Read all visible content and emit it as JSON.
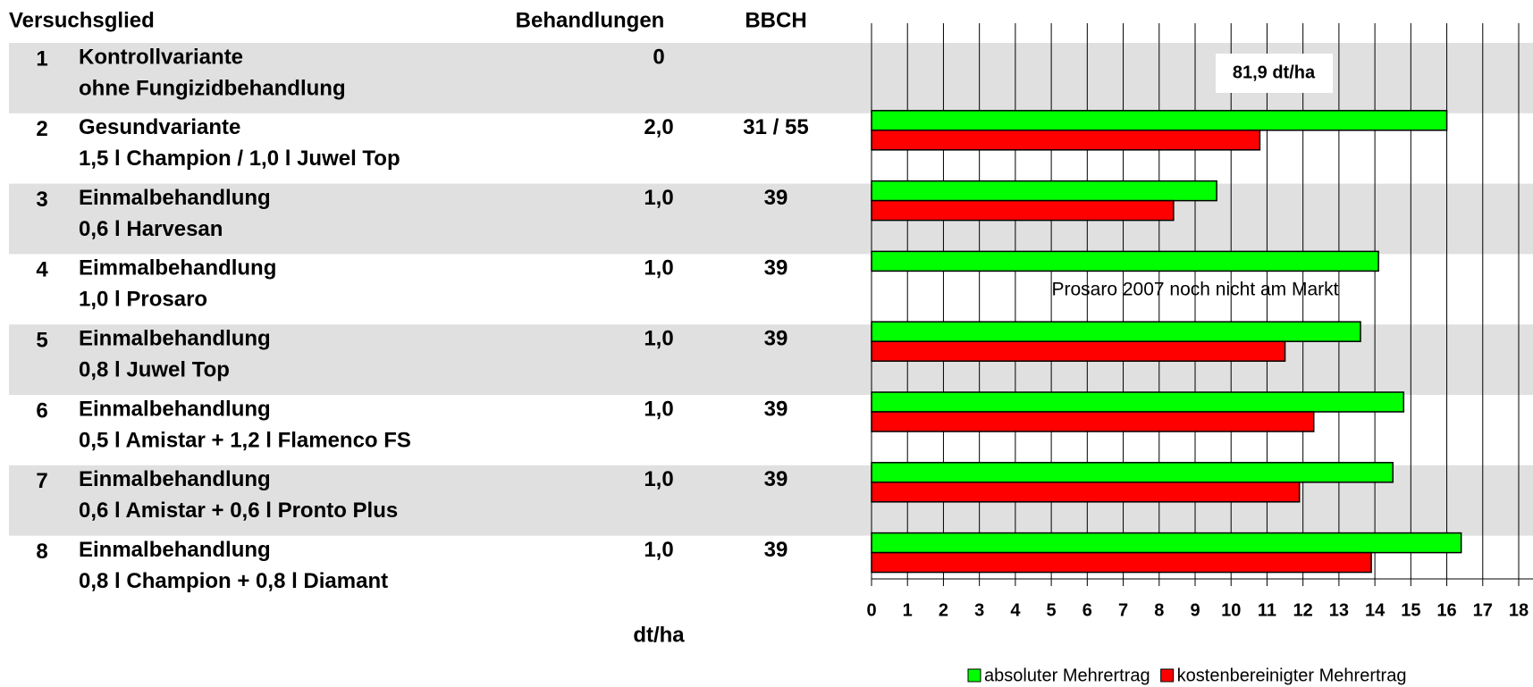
{
  "table": {
    "headers": [
      "Versuchsglied",
      "Behandlungen",
      "BBCH"
    ],
    "rows": [
      {
        "name": "Kontrollvariante",
        "product": "ohne Fungizidbehandlung",
        "treatments": "0",
        "bbch": null
      },
      {
        "name": "Gesundvariante",
        "product": "1,5 l Champion / 1,0 l Juwel Top",
        "treatments": "2,0",
        "bbch": "31 / 55"
      },
      {
        "name": "Einmalbehandlung",
        "product": "0,6 l Harvesan",
        "treatments": "1,0",
        "bbch": "39"
      },
      {
        "name": "Eimmalbehandlung",
        "product": "1,0 l Prosaro",
        "treatments": "1,0",
        "bbch": "39"
      },
      {
        "name": "Einmalbehandlung",
        "product": "0,8 l Juwel Top",
        "treatments": "1,0",
        "bbch": "39"
      },
      {
        "name": "Einmalbehandlung",
        "product": "0,5 l Amistar + 1,2 l Flamenco FS",
        "treatments": "1,0",
        "bbch": "39"
      },
      {
        "name": "Einmalbehandlung",
        "product": "0,6 l Amistar + 0,6 l Pronto Plus",
        "treatments": "1,0",
        "bbch": "39"
      },
      {
        "name": "Einmalbehandlung",
        "product": "0,8 l Champion + 0,8 l Diamant",
        "treatments": "1,0",
        "bbch": "39"
      }
    ]
  },
  "chart_data": {
    "type": "bar",
    "orientation": "horizontal",
    "categories": [
      "1",
      "2",
      "3",
      "4",
      "5",
      "6",
      "7",
      "8"
    ],
    "x_label": "dt/ha",
    "xlim": [
      0,
      18
    ],
    "xticks": [
      0,
      1,
      2,
      3,
      4,
      5,
      6,
      7,
      8,
      9,
      10,
      11,
      12,
      13,
      14,
      15,
      16,
      17,
      18
    ],
    "grid": true,
    "legend": "bottom-right",
    "series": [
      {
        "name": "absoluter Mehrertrag",
        "color": "#00ff00",
        "values": [
          null,
          16.0,
          9.6,
          14.1,
          13.6,
          14.8,
          14.5,
          16.4
        ]
      },
      {
        "name": "kostenbereinigter Mehrertrag",
        "color": "#ff0000",
        "values": [
          null,
          10.8,
          8.4,
          null,
          11.5,
          12.3,
          11.9,
          13.9
        ]
      }
    ],
    "annotations": [
      "81,9 dt/ha",
      "Prosaro 2007 noch nicht am Markt"
    ]
  }
}
